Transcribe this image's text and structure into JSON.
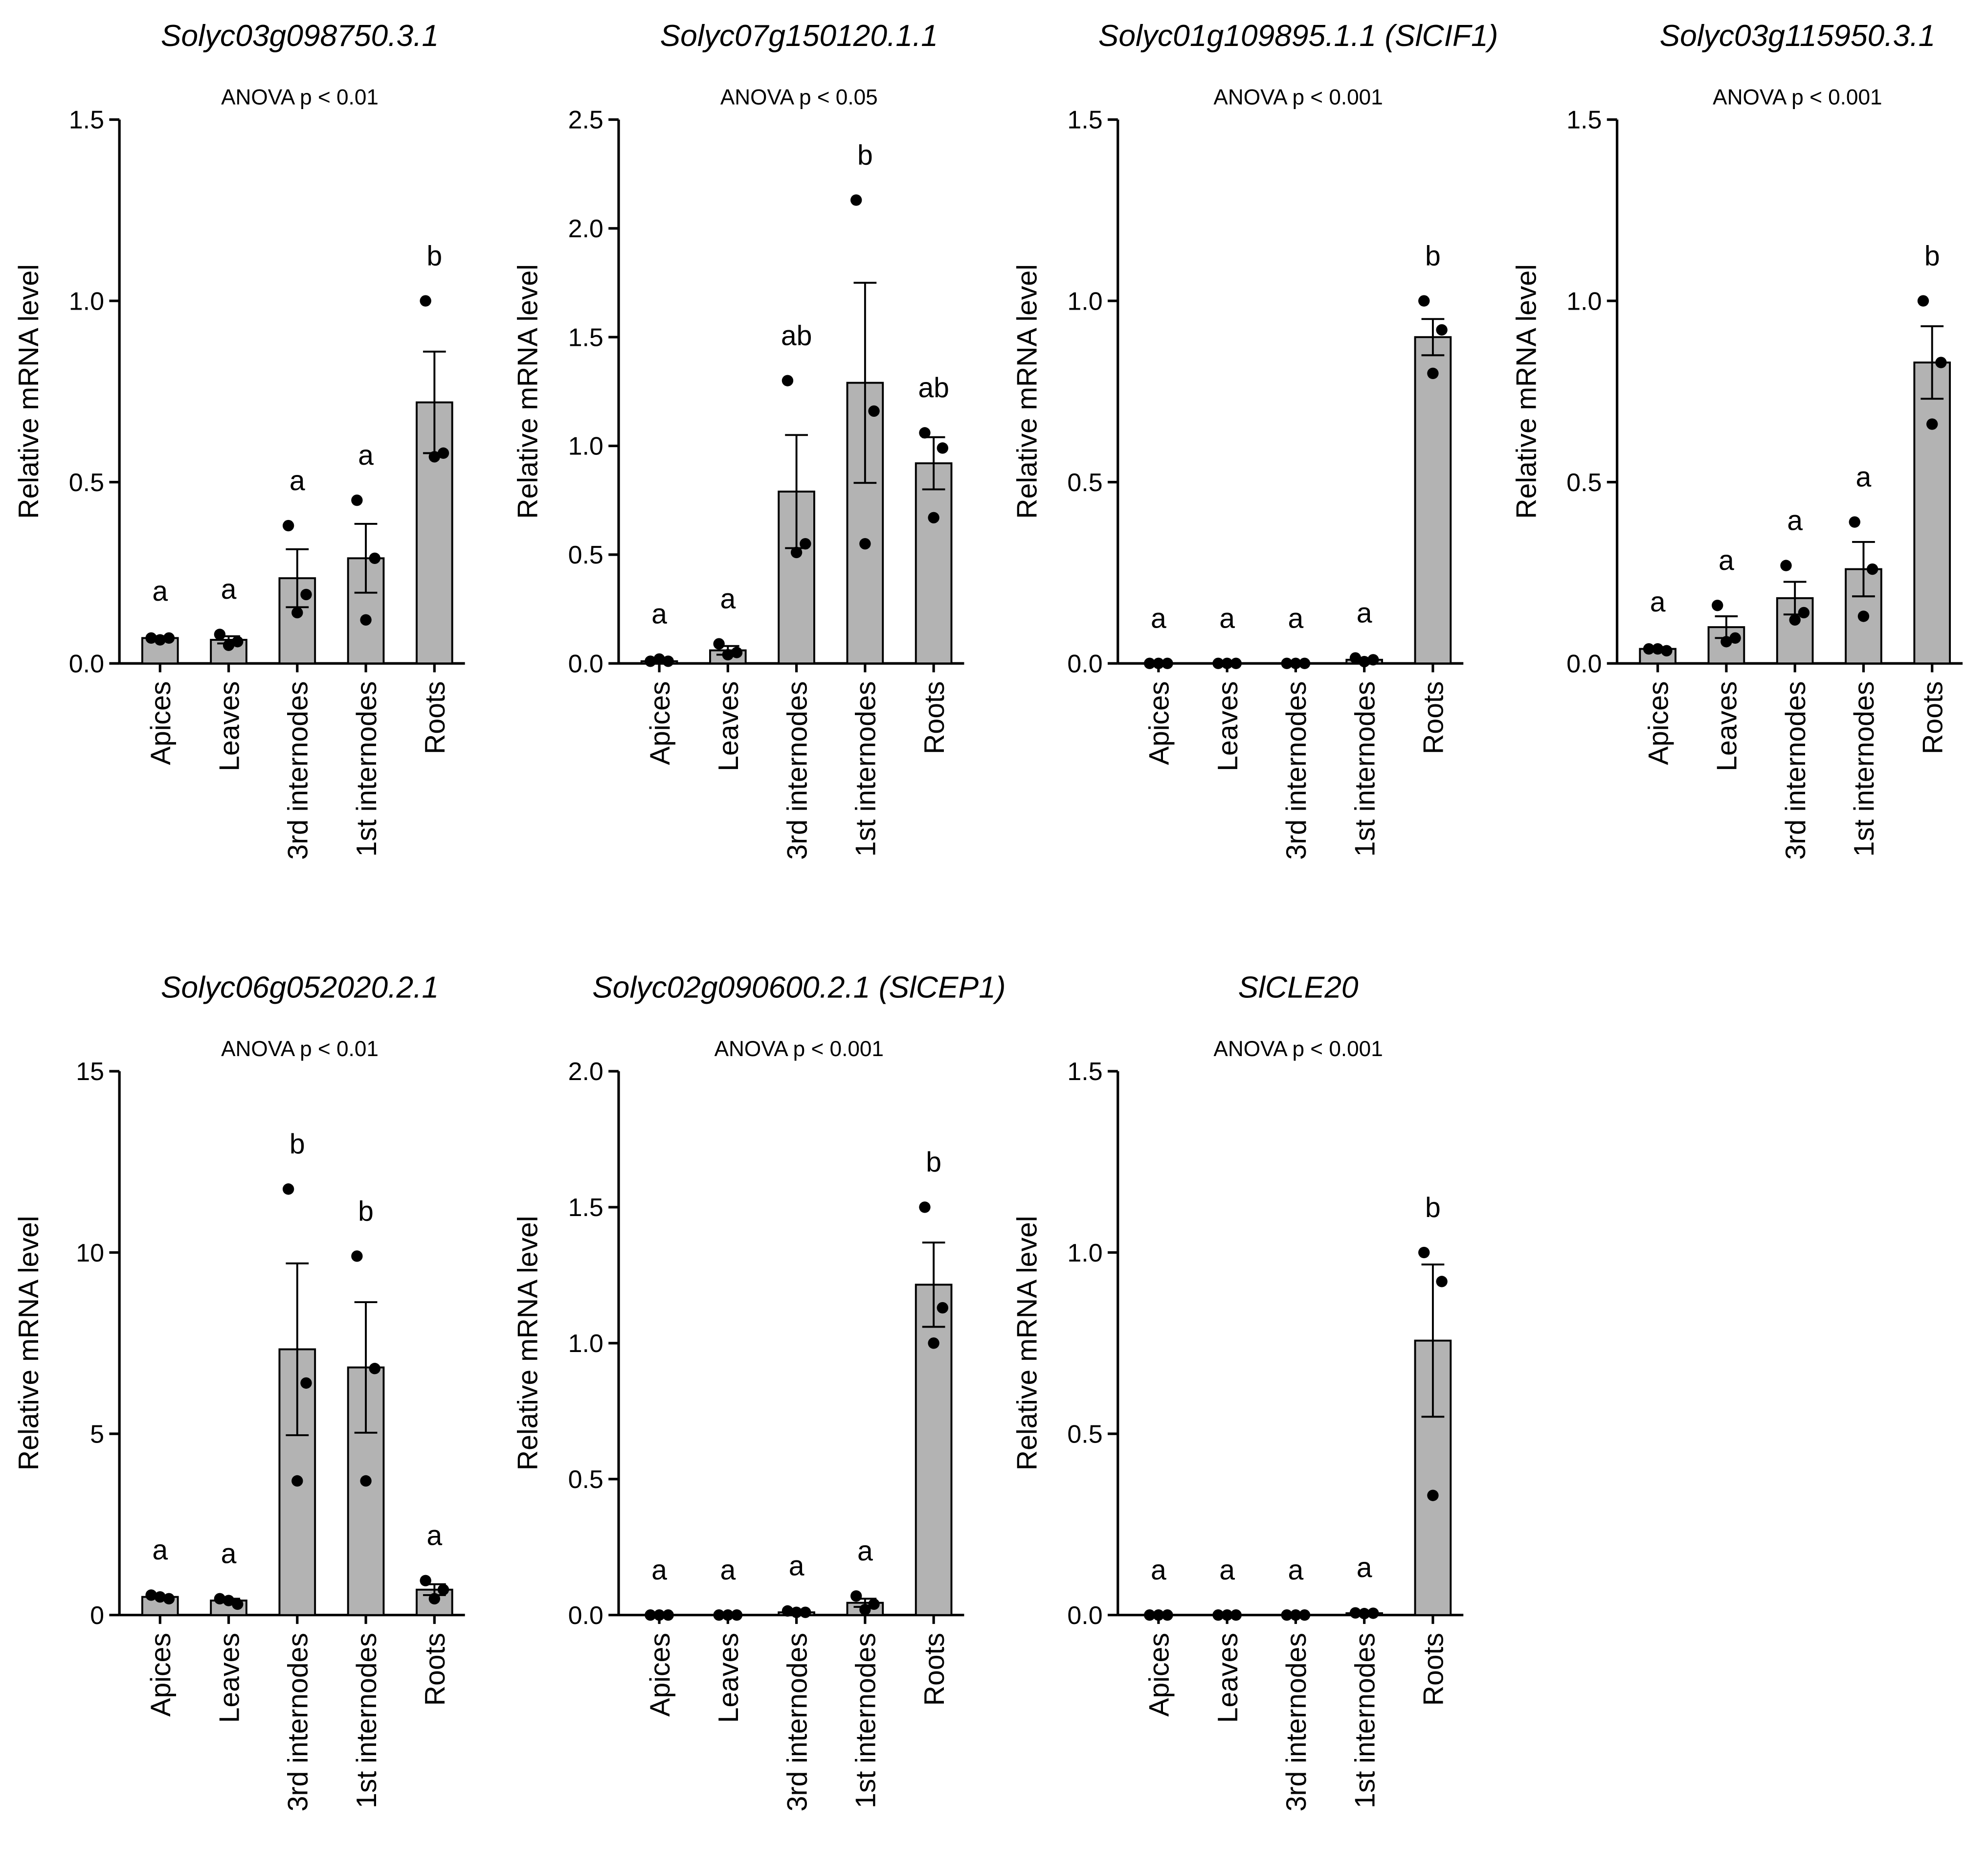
{
  "chart_data": [
    {
      "type": "bar",
      "title": "Solyc03g098750.3.1",
      "subtitle": "ANOVA p < 0.01",
      "ylabel": "Relative mRNA level",
      "categories": [
        "Apices",
        "Leaves",
        "3rd internodes",
        "1st internodes",
        "Roots"
      ],
      "values": [
        0.07,
        0.065,
        0.235,
        0.29,
        0.72
      ],
      "errors": [
        0.005,
        0.01,
        0.08,
        0.095,
        0.14
      ],
      "points": [
        [
          0.07,
          0.07,
          0.065
        ],
        [
          0.08,
          0.06,
          0.05
        ],
        [
          0.38,
          0.19,
          0.14
        ],
        [
          0.45,
          0.29,
          0.12
        ],
        [
          1.0,
          0.58,
          0.57
        ]
      ],
      "annotations": [
        "a",
        "a",
        "a",
        "a",
        "b"
      ],
      "color": "#b3b3b3",
      "ylim": [
        0,
        1.5
      ],
      "yticks": [
        {
          "value": 0,
          "label": "0.0"
        },
        0.5,
        {
          "value": 1,
          "label": "1.0"
        },
        1.5
      ]
    },
    {
      "type": "bar",
      "title": "Solyc07g150120.1.1",
      "subtitle": "ANOVA p < 0.05",
      "ylabel": "Relative mRNA level",
      "categories": [
        "Apices",
        "Leaves",
        "3rd internodes",
        "1st internodes",
        "Roots"
      ],
      "values": [
        0.01,
        0.06,
        0.79,
        1.29,
        0.92
      ],
      "errors": [
        0.005,
        0.02,
        0.26,
        0.46,
        0.12
      ],
      "points": [
        [
          0.01,
          0.01,
          0.02
        ],
        [
          0.09,
          0.05,
          0.04
        ],
        [
          1.3,
          0.55,
          0.51
        ],
        [
          2.13,
          1.16,
          0.55
        ],
        [
          1.06,
          0.99,
          0.67
        ]
      ],
      "annotations": [
        "a",
        "a",
        "ab",
        "b",
        "ab"
      ],
      "color": "#b3b3b3",
      "ylim": [
        0,
        2.5
      ],
      "yticks": [
        {
          "value": 0,
          "label": "0.0"
        },
        0.5,
        {
          "value": 1,
          "label": "1.0"
        },
        1.5,
        {
          "value": 2,
          "label": "2.0"
        },
        2.5
      ]
    },
    {
      "type": "bar",
      "title": "Solyc01g109895.1.1 (SlCIF1)",
      "subtitle": "ANOVA p < 0.001",
      "ylabel": "Relative mRNA level",
      "categories": [
        "Apices",
        "Leaves",
        "3rd internodes",
        "1st internodes",
        "Roots"
      ],
      "values": [
        0,
        0,
        0,
        0.01,
        0.9
      ],
      "errors": [
        0,
        0,
        0,
        0.003,
        0.05
      ],
      "points": [
        [
          0,
          0,
          0
        ],
        [
          0,
          0,
          0
        ],
        [
          0,
          0,
          0
        ],
        [
          0.015,
          0.01,
          0.005
        ],
        [
          1.0,
          0.92,
          0.8
        ]
      ],
      "annotations": [
        "a",
        "a",
        "a",
        "a",
        "b"
      ],
      "color": "#b3b3b3",
      "ylim": [
        0,
        1.5
      ],
      "yticks": [
        {
          "value": 0,
          "label": "0.0"
        },
        0.5,
        {
          "value": 1,
          "label": "1.0"
        },
        1.5
      ]
    },
    {
      "type": "bar",
      "title": "Solyc03g115950.3.1",
      "subtitle": "ANOVA p < 0.001",
      "ylabel": "Relative mRNA level",
      "categories": [
        "Apices",
        "Leaves",
        "3rd internodes",
        "1st internodes",
        "Roots"
      ],
      "values": [
        0.04,
        0.1,
        0.18,
        0.26,
        0.83
      ],
      "errors": [
        0.005,
        0.03,
        0.045,
        0.075,
        0.1
      ],
      "points": [
        [
          0.04,
          0.035,
          0.04
        ],
        [
          0.16,
          0.07,
          0.06
        ],
        [
          0.27,
          0.14,
          0.12
        ],
        [
          0.39,
          0.26,
          0.13
        ],
        [
          1.0,
          0.83,
          0.66
        ]
      ],
      "annotations": [
        "a",
        "a",
        "a",
        "a",
        "b"
      ],
      "color": "#b3b3b3",
      "ylim": [
        0,
        1.5
      ],
      "yticks": [
        {
          "value": 0,
          "label": "0.0"
        },
        0.5,
        {
          "value": 1,
          "label": "1.0"
        },
        1.5
      ]
    },
    {
      "type": "bar",
      "title": "Solyc06g052020.2.1",
      "subtitle": "ANOVA p < 0.01",
      "ylabel": "Relative mRNA level",
      "categories": [
        "Apices",
        "Leaves",
        "3rd internodes",
        "1st internodes",
        "Roots"
      ],
      "values": [
        0.5,
        0.4,
        7.33,
        6.83,
        0.7
      ],
      "errors": [
        0.03,
        0.05,
        2.37,
        1.8,
        0.15
      ],
      "points": [
        [
          0.55,
          0.45,
          0.5
        ],
        [
          0.45,
          0.3,
          0.4
        ],
        [
          11.75,
          6.4,
          3.7
        ],
        [
          9.9,
          6.8,
          3.7
        ],
        [
          0.95,
          0.7,
          0.45
        ]
      ],
      "annotations": [
        "a",
        "a",
        "b",
        "b",
        "a"
      ],
      "color": "#b3b3b3",
      "ylim": [
        0,
        15
      ],
      "yticks": [
        0,
        5,
        10,
        15
      ]
    },
    {
      "type": "bar",
      "title": "Solyc02g090600.2.1 (SlCEP1)",
      "subtitle": "ANOVA p < 0.001",
      "ylabel": "Relative mRNA level",
      "categories": [
        "Apices",
        "Leaves",
        "3rd internodes",
        "1st internodes",
        "Roots"
      ],
      "values": [
        0,
        0,
        0.01,
        0.045,
        1.215
      ],
      "errors": [
        0,
        0,
        0.003,
        0.015,
        0.155
      ],
      "points": [
        [
          0,
          0,
          0
        ],
        [
          0,
          0,
          0
        ],
        [
          0.015,
          0.01,
          0.01
        ],
        [
          0.07,
          0.04,
          0.02
        ],
        [
          1.5,
          1.13,
          1.0
        ]
      ],
      "annotations": [
        "a",
        "a",
        "a",
        "a",
        "b"
      ],
      "color": "#b3b3b3",
      "ylim": [
        0,
        2
      ],
      "yticks": [
        {
          "value": 0,
          "label": "0.0"
        },
        0.5,
        {
          "value": 1,
          "label": "1.0"
        },
        1.5,
        {
          "value": 2,
          "label": "2.0"
        }
      ]
    },
    {
      "type": "bar",
      "title": "SlCLE20",
      "subtitle": "ANOVA p < 0.001",
      "ylabel": "Relative mRNA level",
      "categories": [
        "Apices",
        "Leaves",
        "3rd internodes",
        "1st internodes",
        "Roots"
      ],
      "values": [
        0,
        0,
        0,
        0.005,
        0.757
      ],
      "errors": [
        0,
        0,
        0,
        0.002,
        0.21
      ],
      "points": [
        [
          0,
          0,
          0
        ],
        [
          0,
          0,
          0
        ],
        [
          0,
          0,
          0
        ],
        [
          0.006,
          0.005,
          0.004
        ],
        [
          1.0,
          0.92,
          0.33
        ]
      ],
      "annotations": [
        "a",
        "a",
        "a",
        "a",
        "b"
      ],
      "color": "#b3b3b3",
      "ylim": [
        0,
        1.5
      ],
      "yticks": [
        {
          "value": 0,
          "label": "0.0"
        },
        0.5,
        {
          "value": 1,
          "label": "1.0"
        },
        1.5
      ]
    }
  ]
}
